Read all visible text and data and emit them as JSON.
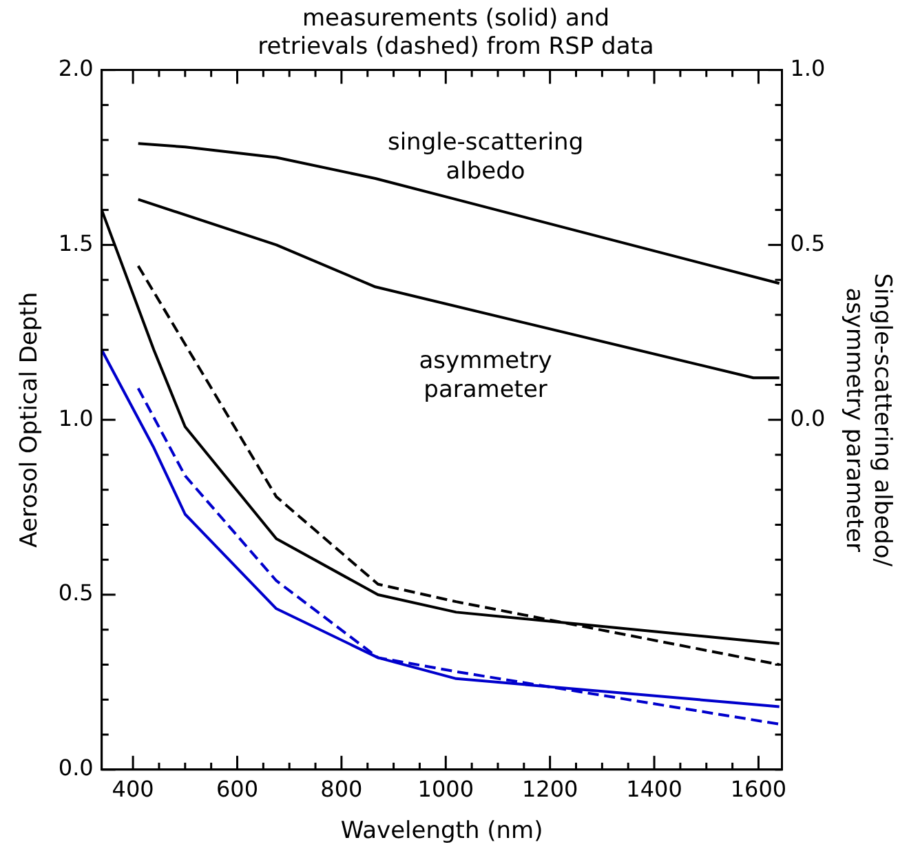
{
  "chart_data": {
    "type": "line",
    "title": "measurements (solid) and retrievals (dashed) from RSP data",
    "xlabel": "Wavelength (nm)",
    "ylabel": "Aerosol Optical Depth",
    "y2label": "Single-scattering albedo/ asymmetry parameter",
    "xlim": [
      340,
      1645
    ],
    "ylim": [
      0,
      2
    ],
    "y2lim": [
      -1,
      1
    ],
    "xticks": [
      400,
      {
        "value": 450,
        "label": null
      },
      {
        "value": 500,
        "label": null
      },
      {
        "value": 550,
        "label": null
      },
      600,
      {
        "value": 650,
        "label": null
      },
      {
        "value": 700,
        "label": null
      },
      {
        "value": 750,
        "label": null
      },
      800,
      {
        "value": 850,
        "label": null
      },
      {
        "value": 900,
        "label": null
      },
      {
        "value": 950,
        "label": null
      },
      1000,
      {
        "value": 1050,
        "label": null
      },
      {
        "value": 1100,
        "label": null
      },
      {
        "value": 1150,
        "label": null
      },
      1200,
      {
        "value": 1250,
        "label": null
      },
      {
        "value": 1300,
        "label": null
      },
      {
        "value": 1350,
        "label": null
      },
      1400,
      {
        "value": 1450,
        "label": null
      },
      {
        "value": 1500,
        "label": null
      },
      {
        "value": 1550,
        "label": null
      },
      1600
    ],
    "yticks": [
      {
        "value": 0,
        "label": "0.0"
      },
      {
        "value": 0.1,
        "label": null
      },
      {
        "value": 0.2,
        "label": null
      },
      {
        "value": 0.3,
        "label": null
      },
      {
        "value": 0.4,
        "label": null
      },
      0.5,
      {
        "value": 0.6,
        "label": null
      },
      {
        "value": 0.7,
        "label": null
      },
      {
        "value": 0.8,
        "label": null
      },
      {
        "value": 0.9,
        "label": null
      },
      {
        "value": 1,
        "label": "1.0"
      },
      {
        "value": 1.1,
        "label": null
      },
      {
        "value": 1.2,
        "label": null
      },
      {
        "value": 1.3,
        "label": null
      },
      {
        "value": 1.4,
        "label": null
      },
      1.5,
      {
        "value": 1.6,
        "label": null
      },
      {
        "value": 1.7,
        "label": null
      },
      {
        "value": 1.8,
        "label": null
      },
      {
        "value": 1.9,
        "label": null
      },
      {
        "value": 2,
        "label": "2.0"
      }
    ],
    "y2ticks": [
      {
        "value": -1,
        "label": null
      },
      {
        "value": -0.9,
        "label": null
      },
      {
        "value": -0.8,
        "label": null
      },
      {
        "value": -0.7,
        "label": null
      },
      {
        "value": -0.6,
        "label": null
      },
      {
        "value": -0.5,
        "label": null
      },
      {
        "value": -0.4,
        "label": null
      },
      {
        "value": -0.3,
        "label": null
      },
      {
        "value": -0.2,
        "label": null
      },
      {
        "value": -0.1,
        "label": null
      },
      {
        "value": 0,
        "label": "0.0"
      },
      {
        "value": 0.1,
        "label": null
      },
      {
        "value": 0.2,
        "label": null
      },
      {
        "value": 0.3,
        "label": null
      },
      {
        "value": 0.4,
        "label": null
      },
      0.5,
      {
        "value": 0.6,
        "label": null
      },
      {
        "value": 0.7,
        "label": null
      },
      {
        "value": 0.8,
        "label": null
      },
      {
        "value": 0.9,
        "label": null
      },
      {
        "value": 1,
        "label": "1.0"
      }
    ],
    "grid": false,
    "legend": false,
    "marker": "none",
    "series": [
      {
        "color": "#000000",
        "line_style": "solid",
        "x": [
          340,
          440,
          500,
          675,
          870,
          1020,
          1640
        ],
        "values": [
          1.6,
          1.2,
          0.98,
          0.66,
          0.5,
          0.45,
          0.36
        ]
      },
      {
        "color": "#0000cc",
        "line_style": "solid",
        "x": [
          340,
          440,
          500,
          675,
          870,
          1020,
          1640
        ],
        "values": [
          1.2,
          0.92,
          0.73,
          0.46,
          0.32,
          0.26,
          0.18
        ]
      },
      {
        "color": "#000000",
        "line_style": "dashed",
        "x": [
          410,
          675,
          870,
          1020,
          1640
        ],
        "values": [
          1.44,
          0.78,
          0.53,
          0.48,
          0.3
        ]
      },
      {
        "color": "#0000cc",
        "line_style": "dashed",
        "x": [
          410,
          500,
          675,
          870,
          1020,
          1640
        ],
        "values": [
          1.09,
          0.84,
          0.54,
          0.32,
          0.28,
          0.13
        ]
      },
      {
        "name": "single-scattering albedo",
        "color": "#000000",
        "line_style": "solid",
        "axis": "y2",
        "x": [
          410,
          500,
          675,
          865,
          1020,
          1640
        ],
        "values": [
          0.79,
          0.78,
          0.75,
          0.69,
          0.63,
          0.39
        ]
      },
      {
        "name": "asymmetry parameter",
        "color": "#000000",
        "line_style": "solid",
        "axis": "y2",
        "x": [
          410,
          675,
          865,
          1590,
          1640
        ],
        "values": [
          0.63,
          0.5,
          0.38,
          0.12,
          0.12
        ]
      }
    ]
  }
}
